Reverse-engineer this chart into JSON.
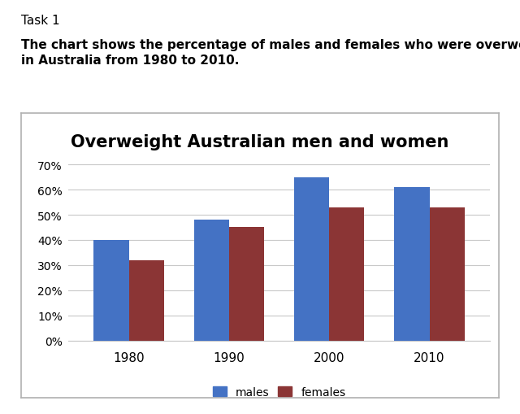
{
  "title": "Overweight Australian men and women",
  "years": [
    1980,
    1990,
    2000,
    2010
  ],
  "males": [
    40,
    48,
    65,
    61
  ],
  "females": [
    32,
    45,
    53,
    53
  ],
  "male_color": "#4472C4",
  "female_color": "#8B3535",
  "ylim": [
    0,
    70
  ],
  "ytick_labels": [
    "0%",
    "10%",
    "20%",
    "30%",
    "40%",
    "50%",
    "60%",
    "70%"
  ],
  "ytick_values": [
    0,
    10,
    20,
    30,
    40,
    50,
    60,
    70
  ],
  "bar_width": 0.35,
  "legend_labels": [
    "males",
    "females"
  ],
  "task_label": "Task 1",
  "description_line1": "The chart shows the percentage of males and females who were overweight",
  "description_line2": "in Australia from 1980 to 2010.",
  "chart_bg": "#ffffff",
  "outer_bg": "#ffffff",
  "border_color": "#b0b0b0",
  "grid_color": "#c8c8c8",
  "title_fontsize": 15,
  "tick_fontsize": 10,
  "legend_fontsize": 10,
  "text_fontsize": 11
}
